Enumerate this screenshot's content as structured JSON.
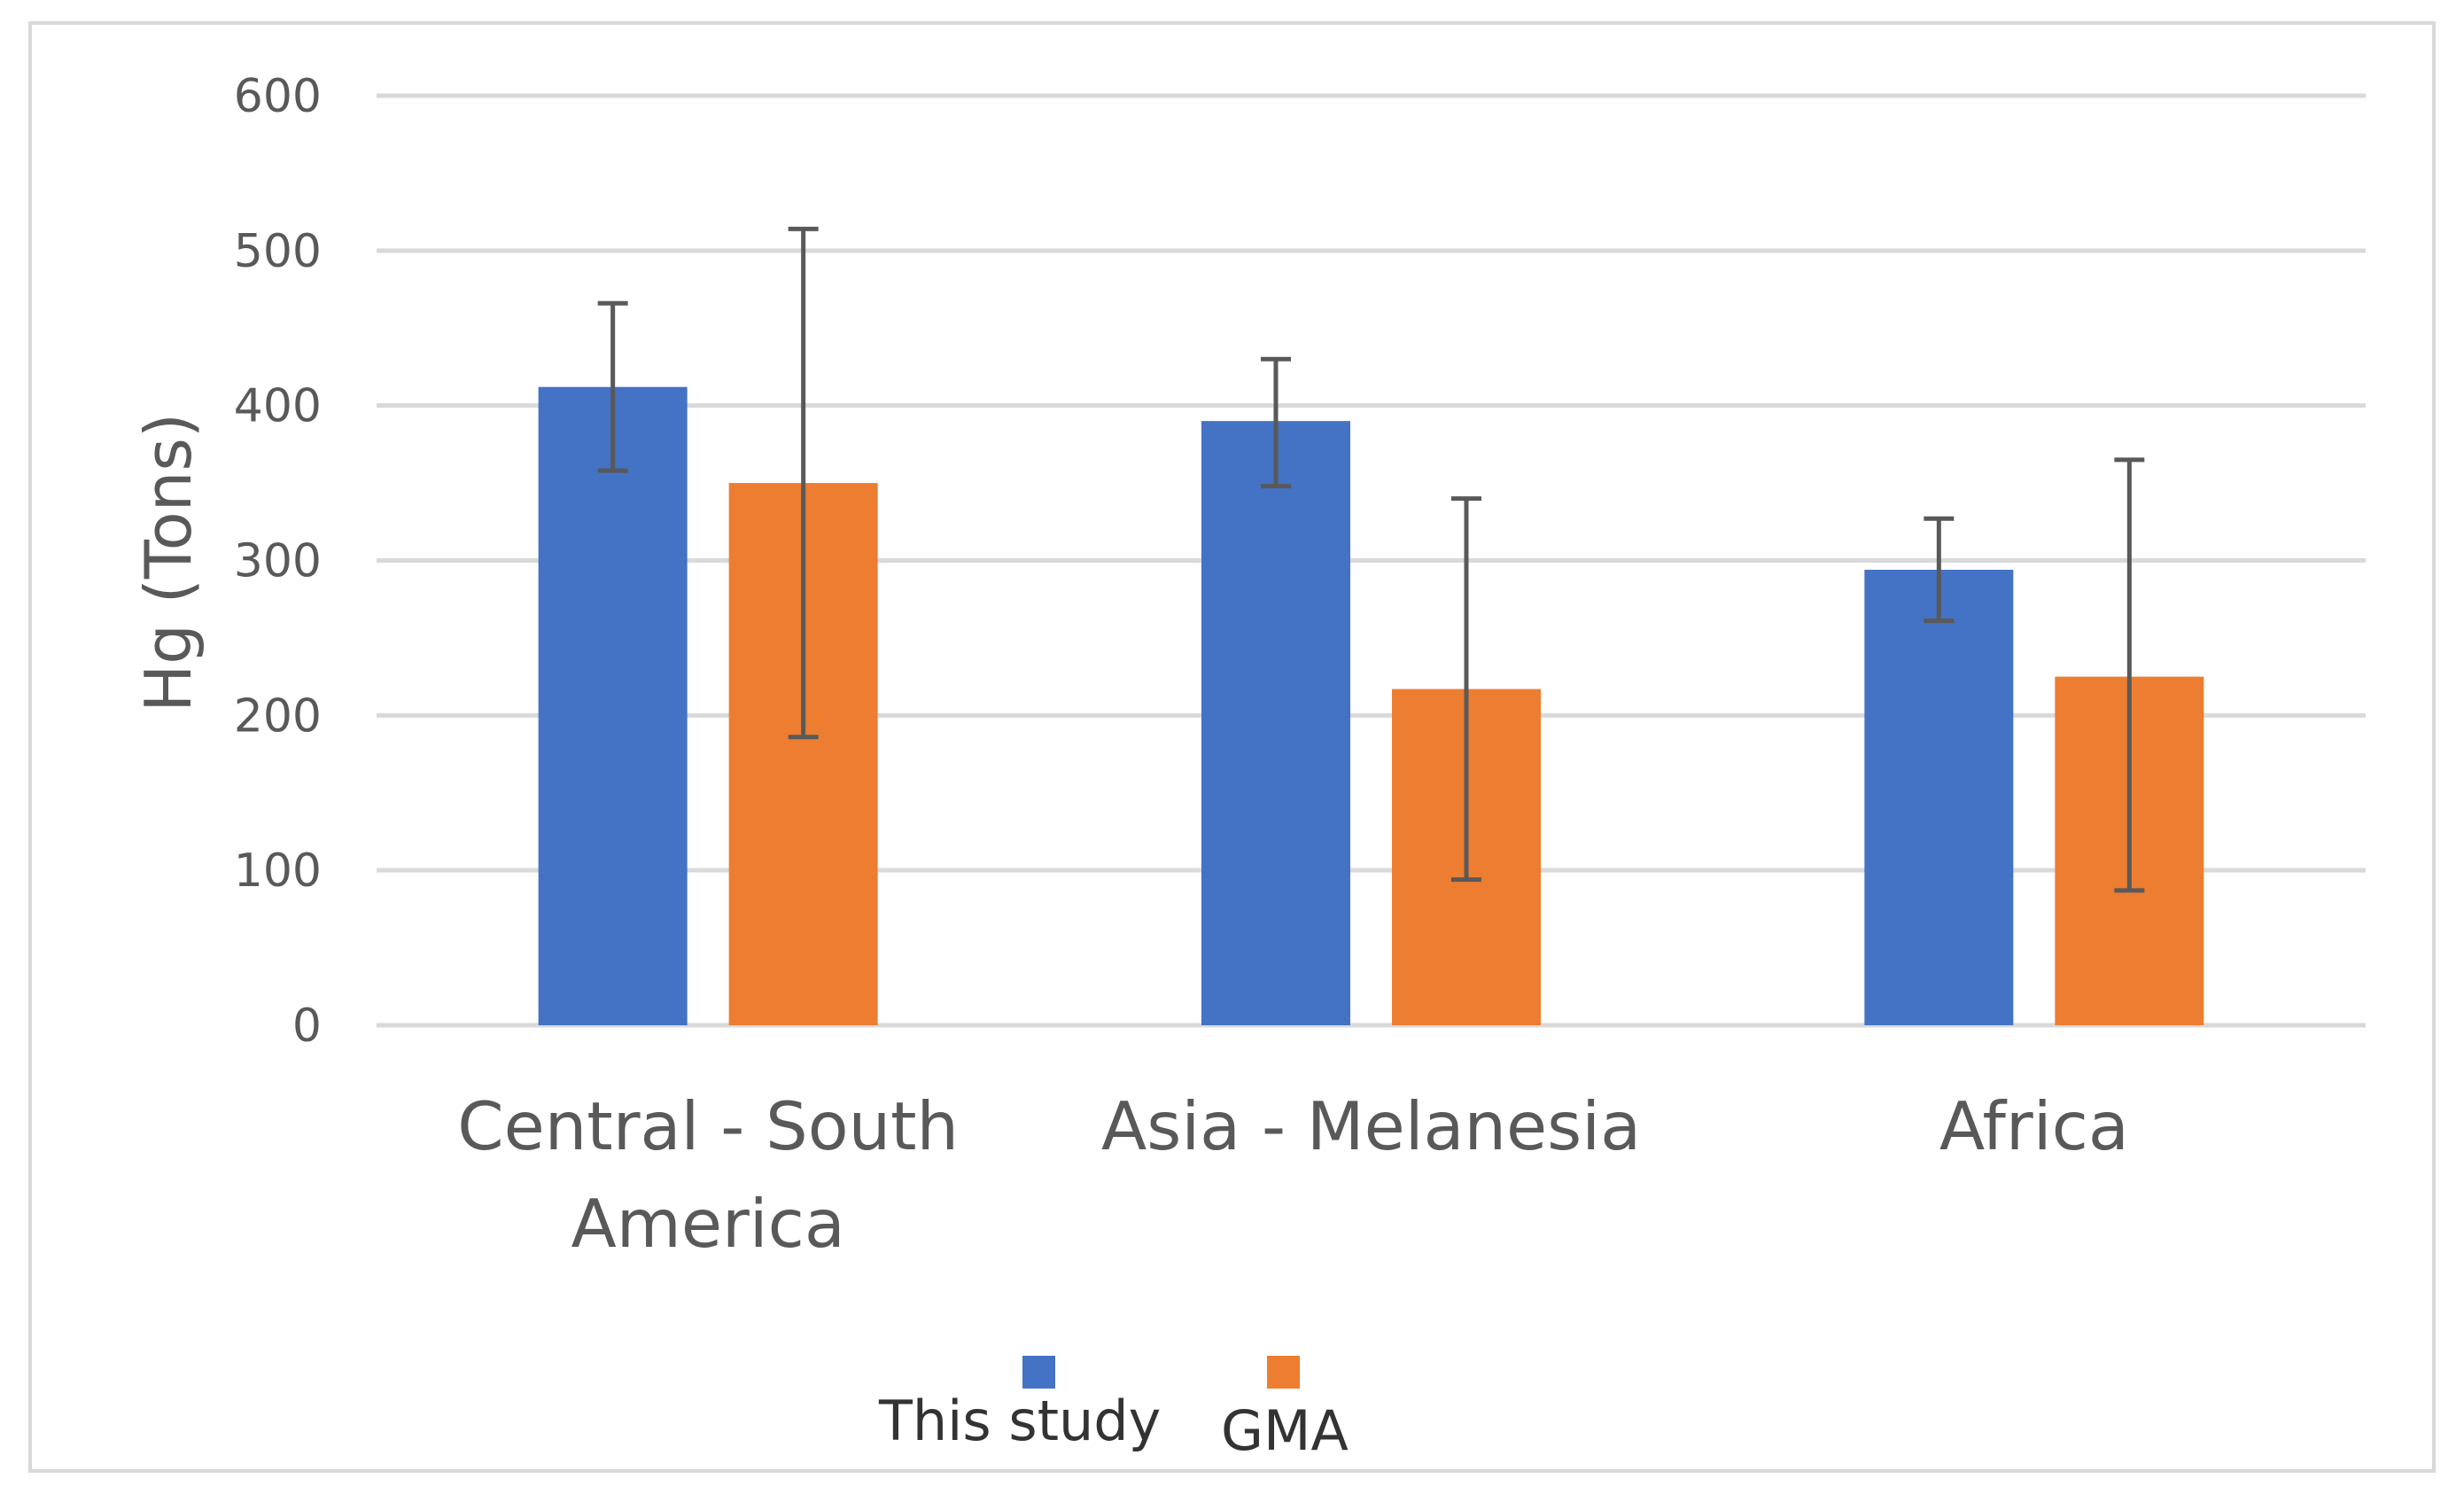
{
  "chart_data": {
    "type": "bar",
    "title": "",
    "xlabel": "",
    "ylabel": "Hg (Tons)",
    "ylim": [
      0,
      600
    ],
    "yticks": [
      0,
      100,
      200,
      300,
      400,
      500,
      600
    ],
    "grid": true,
    "legend_position": "bottom-center",
    "categories": [
      [
        "Central - South",
        "America"
      ],
      [
        "Asia - Melanesia"
      ],
      [
        "Africa"
      ]
    ],
    "series": [
      {
        "name": "This study",
        "color": "#4472C4",
        "values": [
          412,
          390,
          294
        ],
        "error_low": [
          358,
          348,
          261
        ],
        "error_high": [
          466,
          430,
          327
        ]
      },
      {
        "name": "GMA",
        "color": "#ED7D31",
        "values": [
          350,
          217,
          225
        ],
        "error_low": [
          186,
          94,
          87
        ],
        "error_high": [
          514,
          340,
          365
        ]
      }
    ]
  }
}
